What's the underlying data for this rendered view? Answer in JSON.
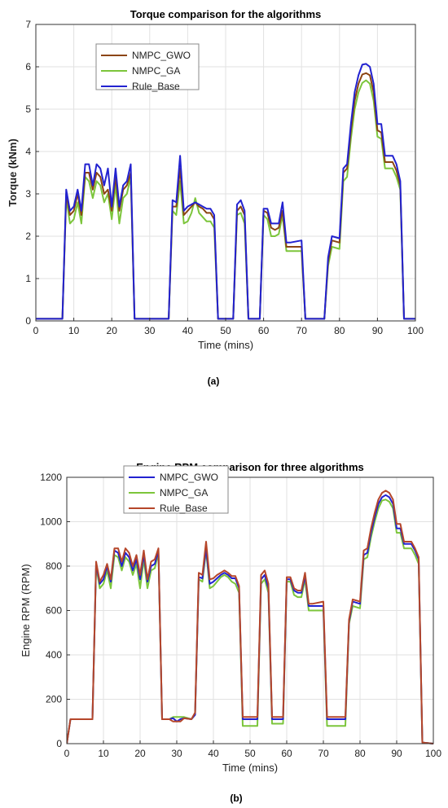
{
  "figure": {
    "caption_a": "(a)",
    "caption_b": "(b)"
  },
  "chart_data": [
    {
      "type": "line",
      "title": "Torque comparison for the algorithms",
      "xlabel": "Time (mins)",
      "ylabel": "Torque (kNm)",
      "xlim": [
        0,
        100
      ],
      "ylim": [
        0,
        7
      ],
      "xticks": [
        0,
        10,
        20,
        30,
        40,
        50,
        60,
        70,
        80,
        90,
        100
      ],
      "yticks": [
        0,
        1,
        2,
        3,
        4,
        5,
        6,
        7
      ],
      "grid": true,
      "legend_position": "top-left",
      "colors": {
        "NMPC_GWO": "#8B4513",
        "NMPC_GA": "#7CC53B",
        "Rule_Base": "#2222D0"
      },
      "x": [
        0,
        7,
        8,
        9,
        10,
        11,
        12,
        13,
        14,
        15,
        16,
        17,
        18,
        19,
        20,
        21,
        22,
        23,
        24,
        25,
        26,
        35,
        36,
        37,
        38,
        39,
        40,
        41,
        42,
        43,
        44,
        45,
        46,
        47,
        48,
        52,
        53,
        54,
        55,
        56,
        59,
        60,
        61,
        62,
        63,
        64,
        65,
        66,
        67,
        70,
        71,
        76,
        77,
        78,
        80,
        81,
        82,
        83,
        84,
        85,
        86,
        87,
        88,
        89,
        90,
        91,
        92,
        93,
        94,
        95,
        96,
        97,
        100
      ],
      "series": [
        {
          "name": "NMPC_GWO",
          "values": [
            0.05,
            0.05,
            3.0,
            2.5,
            2.6,
            3.0,
            2.5,
            3.5,
            3.5,
            3.1,
            3.5,
            3.4,
            3.0,
            3.1,
            2.6,
            3.4,
            2.6,
            3.1,
            3.2,
            3.5,
            0.05,
            0.05,
            2.7,
            2.7,
            3.6,
            2.5,
            2.6,
            2.7,
            2.8,
            2.7,
            2.65,
            2.55,
            2.55,
            2.4,
            0.05,
            0.05,
            2.6,
            2.7,
            2.5,
            0.05,
            0.05,
            2.6,
            2.55,
            2.2,
            2.15,
            2.2,
            2.6,
            1.75,
            1.75,
            1.75,
            0.05,
            0.05,
            1.4,
            1.9,
            1.85,
            3.5,
            3.6,
            4.5,
            5.2,
            5.6,
            5.82,
            5.85,
            5.8,
            5.4,
            4.5,
            4.45,
            3.75,
            3.75,
            3.75,
            3.55,
            3.2,
            0.05,
            0.05
          ]
        },
        {
          "name": "NMPC_GA",
          "values": [
            0.05,
            0.05,
            2.9,
            2.3,
            2.4,
            2.8,
            2.3,
            3.4,
            3.3,
            2.9,
            3.3,
            3.2,
            2.8,
            3.0,
            2.4,
            3.2,
            2.3,
            2.9,
            3.0,
            3.4,
            0.05,
            0.05,
            2.6,
            2.5,
            3.3,
            2.3,
            2.35,
            2.55,
            2.9,
            2.55,
            2.45,
            2.35,
            2.35,
            2.2,
            0.05,
            0.05,
            2.5,
            2.55,
            2.3,
            0.05,
            0.05,
            2.5,
            2.4,
            2.0,
            2.0,
            2.05,
            2.5,
            1.65,
            1.65,
            1.65,
            0.05,
            0.05,
            1.3,
            1.75,
            1.7,
            3.3,
            3.4,
            4.3,
            5.0,
            5.4,
            5.62,
            5.68,
            5.6,
            5.2,
            4.35,
            4.3,
            3.6,
            3.6,
            3.6,
            3.4,
            3.1,
            0.05,
            0.05
          ]
        },
        {
          "name": "Rule_Base",
          "values": [
            0.05,
            0.05,
            3.1,
            2.6,
            2.7,
            3.1,
            2.6,
            3.7,
            3.7,
            3.2,
            3.7,
            3.6,
            3.2,
            3.6,
            2.7,
            3.6,
            2.7,
            3.2,
            3.3,
            3.7,
            0.05,
            0.05,
            2.85,
            2.8,
            3.9,
            2.6,
            2.7,
            2.75,
            2.8,
            2.75,
            2.7,
            2.65,
            2.65,
            2.5,
            0.05,
            0.05,
            2.75,
            2.85,
            2.6,
            0.05,
            0.05,
            2.65,
            2.65,
            2.3,
            2.3,
            2.3,
            2.8,
            1.85,
            1.85,
            1.9,
            0.05,
            0.05,
            1.5,
            2.0,
            1.95,
            3.6,
            3.7,
            4.65,
            5.4,
            5.8,
            6.05,
            6.07,
            6.0,
            5.6,
            4.65,
            4.65,
            3.9,
            3.9,
            3.9,
            3.7,
            3.3,
            0.05,
            0.05
          ]
        }
      ]
    },
    {
      "type": "line",
      "title": "Engine RPM comparison for three algorithms",
      "xlabel": "Time (mins)",
      "ylabel": "Engine RPM (RPM)",
      "xlim": [
        0,
        100
      ],
      "ylim": [
        0,
        1200
      ],
      "xticks": [
        0,
        10,
        20,
        30,
        40,
        50,
        60,
        70,
        80,
        90,
        100
      ],
      "yticks": [
        0,
        200,
        400,
        600,
        800,
        1000,
        1200
      ],
      "grid": true,
      "legend_position": "top-left",
      "colors": {
        "NMPC_GWO": "#2222D0",
        "NMPC_GA": "#7CC53B",
        "Rule_Base": "#B5462A"
      },
      "x": [
        0,
        1,
        7,
        8,
        9,
        10,
        11,
        12,
        13,
        14,
        15,
        16,
        17,
        18,
        19,
        20,
        21,
        22,
        23,
        24,
        25,
        26,
        28,
        29,
        30,
        31,
        32,
        34,
        35,
        36,
        37,
        38,
        39,
        40,
        41,
        42,
        43,
        44,
        45,
        46,
        47,
        48,
        52,
        53,
        54,
        55,
        56,
        59,
        60,
        61,
        62,
        63,
        64,
        65,
        66,
        67,
        70,
        71,
        76,
        77,
        78,
        80,
        81,
        82,
        83,
        84,
        85,
        86,
        87,
        88,
        89,
        90,
        91,
        92,
        93,
        94,
        95,
        96,
        97,
        100
      ],
      "series": [
        {
          "name": "NMPC_GWO",
          "values": [
            0,
            110,
            110,
            810,
            720,
            740,
            800,
            730,
            870,
            860,
            800,
            860,
            840,
            780,
            830,
            740,
            850,
            730,
            800,
            810,
            870,
            110,
            110,
            115,
            100,
            110,
            115,
            110,
            130,
            750,
            745,
            880,
            720,
            730,
            745,
            760,
            770,
            760,
            745,
            745,
            700,
            110,
            110,
            740,
            760,
            700,
            110,
            110,
            740,
            740,
            690,
            680,
            680,
            755,
            620,
            620,
            620,
            110,
            110,
            550,
            640,
            630,
            850,
            860,
            950,
            1020,
            1080,
            1110,
            1120,
            1110,
            1080,
            970,
            970,
            900,
            900,
            900,
            870,
            830,
            5,
            0
          ]
        },
        {
          "name": "NMPC_GA",
          "values": [
            0,
            110,
            110,
            800,
            700,
            720,
            780,
            700,
            850,
            840,
            780,
            840,
            820,
            760,
            810,
            700,
            830,
            700,
            780,
            790,
            860,
            110,
            110,
            120,
            120,
            120,
            120,
            110,
            130,
            740,
            730,
            870,
            700,
            710,
            730,
            750,
            760,
            750,
            730,
            720,
            680,
            80,
            80,
            720,
            740,
            680,
            90,
            90,
            730,
            730,
            670,
            660,
            660,
            740,
            600,
            600,
            600,
            80,
            80,
            540,
            620,
            610,
            830,
            840,
            930,
            1000,
            1060,
            1095,
            1100,
            1090,
            1060,
            950,
            950,
            880,
            880,
            880,
            850,
            810,
            5,
            0
          ]
        },
        {
          "name": "Rule_Base",
          "values": [
            0,
            110,
            110,
            820,
            730,
            760,
            810,
            740,
            880,
            880,
            820,
            880,
            860,
            800,
            850,
            760,
            870,
            740,
            820,
            830,
            880,
            110,
            110,
            100,
            100,
            100,
            115,
            110,
            140,
            770,
            760,
            910,
            740,
            745,
            760,
            770,
            780,
            770,
            755,
            755,
            710,
            120,
            120,
            760,
            780,
            720,
            120,
            120,
            750,
            750,
            700,
            690,
            690,
            770,
            630,
            630,
            640,
            120,
            120,
            560,
            650,
            640,
            870,
            880,
            970,
            1040,
            1100,
            1130,
            1140,
            1130,
            1100,
            990,
            990,
            910,
            910,
            910,
            880,
            840,
            5,
            0
          ]
        }
      ]
    }
  ]
}
